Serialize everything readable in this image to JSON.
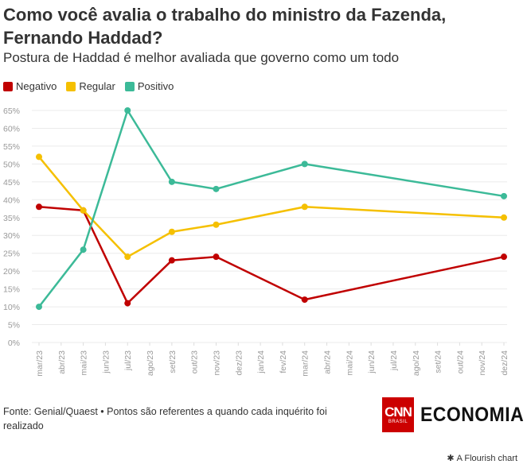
{
  "header": {
    "title": "Como você avalia o trabalho do ministro da Fazenda, Fernando Haddad?",
    "subtitle": "Postura de Haddad é melhor avaliada que governo como um todo"
  },
  "footer": {
    "source": "Fonte: Genial/Quaest • Pontos são referentes a quando cada inquérito foi realizado",
    "cnn_label": "CNN",
    "cnn_sub": "BRASIL",
    "economia_label": "ECONOMIA",
    "flourish_label": "A Flourish chart"
  },
  "icons": {
    "flourish": "asterisk-icon"
  },
  "chart_data": {
    "type": "line",
    "x": [
      "mar/23",
      "abr/23",
      "mai/23",
      "jun/23",
      "jul/23",
      "ago/23",
      "set/23",
      "out/23",
      "nov/23",
      "dez/23",
      "jan/24",
      "fev/24",
      "mar/24",
      "abr/24",
      "mai/24",
      "jun/24",
      "jul/24",
      "ago/24",
      "set/24",
      "out/24",
      "nov/24",
      "dez/24"
    ],
    "series": [
      {
        "name": "Negativo",
        "color": "#c00000",
        "values": [
          38,
          null,
          37,
          null,
          11,
          null,
          23,
          null,
          24,
          null,
          null,
          null,
          12,
          null,
          null,
          null,
          null,
          null,
          null,
          null,
          null,
          24
        ]
      },
      {
        "name": "Regular",
        "color": "#f5c000",
        "values": [
          52,
          null,
          37,
          null,
          24,
          null,
          31,
          null,
          33,
          null,
          null,
          null,
          38,
          null,
          null,
          null,
          null,
          null,
          null,
          null,
          null,
          35
        ]
      },
      {
        "name": "Positivo",
        "color": "#3cba98",
        "values": [
          10,
          null,
          26,
          null,
          65,
          null,
          45,
          null,
          43,
          null,
          null,
          null,
          50,
          null,
          null,
          null,
          null,
          null,
          null,
          null,
          null,
          41
        ]
      }
    ],
    "yticks": [
      "0%",
      "5%",
      "10%",
      "15%",
      "20%",
      "25%",
      "30%",
      "35%",
      "40%",
      "45%",
      "50%",
      "55%",
      "60%",
      "65%"
    ],
    "ylim": [
      0,
      65
    ],
    "legend_position": "top-left",
    "grid": true
  }
}
